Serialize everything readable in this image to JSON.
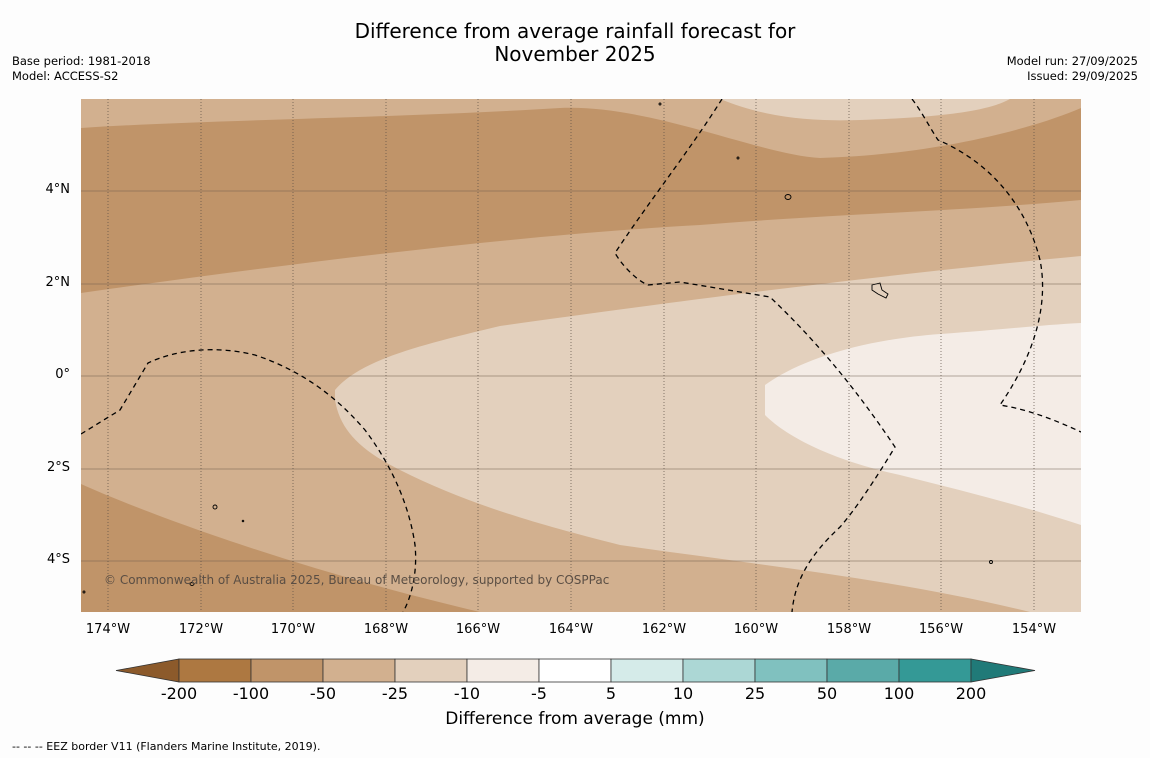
{
  "title": {
    "line1": "Difference from average rainfall forecast for",
    "line2": "November 2025"
  },
  "info_left": {
    "base_period": "Base period: 1981-2018",
    "model": "Model: ACCESS-S2"
  },
  "info_right": {
    "model_run": "Model run: 27/09/2025",
    "issued": "Issued: 29/09/2025"
  },
  "map": {
    "latitude_labels": [
      "4°N",
      "2°N",
      "0°",
      "2°S",
      "4°S"
    ],
    "longitude_labels": [
      "174°W",
      "172°W",
      "170°W",
      "168°W",
      "166°W",
      "164°W",
      "162°W",
      "160°W",
      "158°W",
      "156°W",
      "154°W"
    ],
    "copyright": "© Commonwealth of Australia 2025, Bureau of Meteorology, supported by COSPPac",
    "colors": {
      "band_minus_50_100": "#c09469",
      "band_minus_25_50": "#d2b08f",
      "band_minus_10_25": "#e3d0bd",
      "band_minus_5_10": "#f4ece6"
    }
  },
  "colorbar": {
    "ticks": [
      "-200",
      "-100",
      "-50",
      "-25",
      "-10",
      "-5",
      "5",
      "10",
      "25",
      "50",
      "100",
      "200"
    ],
    "colors": [
      "#8c5a2b",
      "#ad7841",
      "#c09469",
      "#d2b08f",
      "#e3d0bd",
      "#f4ece6",
      "#ffffff",
      "#d5ebe9",
      "#acd7d5",
      "#80c1bf",
      "#5aaaa8",
      "#349996",
      "#207a78"
    ],
    "label": "Difference from average (mm)"
  },
  "footnote": "--  --  -- EEZ border V11 (Flanders Marine Institute, 2019)."
}
